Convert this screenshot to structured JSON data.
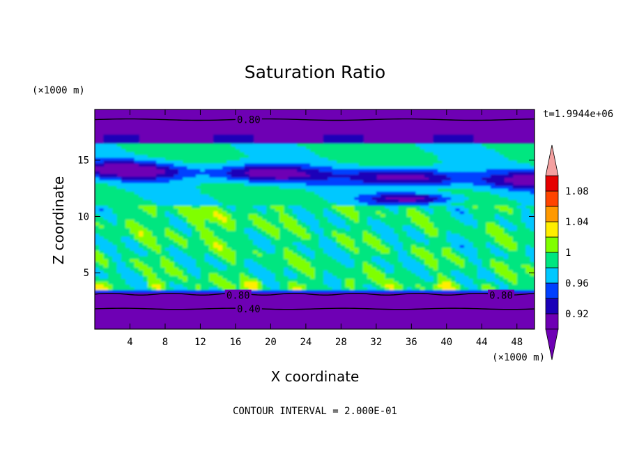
{
  "chart_data": {
    "type": "heatmap",
    "title": "Saturation Ratio",
    "xlabel": "X coordinate",
    "ylabel": "Z coordinate",
    "x_unit": "(×1000 m)",
    "y_unit": "(×1000 m)",
    "time_label": "t=1.9944e+06",
    "footer": "CONTOUR INTERVAL = 2.000E-01",
    "xlim": [
      0,
      50
    ],
    "ylim": [
      0,
      19.5
    ],
    "x_ticks": [
      4,
      8,
      12,
      16,
      20,
      24,
      28,
      32,
      36,
      40,
      44,
      48
    ],
    "y_ticks": [
      5,
      10,
      15
    ],
    "colorbar": {
      "levels": [
        0.9,
        0.92,
        0.94,
        0.96,
        0.98,
        1.0,
        1.02,
        1.04,
        1.06,
        1.08,
        1.1
      ],
      "tick_values": [
        0.92,
        0.96,
        1,
        1.04,
        1.08
      ],
      "tick_labels": [
        "0.92",
        "0.96",
        "1",
        "1.04",
        "1.08"
      ],
      "colors": [
        "#6e00b4",
        "#1a00b8",
        "#0040ff",
        "#00c8ff",
        "#00e680",
        "#80ff00",
        "#ffee00",
        "#ff9900",
        "#ff4400",
        "#e60000"
      ],
      "under_color": "#6e00b4",
      "over_color": "#f4a0a0"
    },
    "contour_labels": [
      {
        "text": "0.80",
        "x": 17.5,
        "z": 18.6
      },
      {
        "text": "0.80",
        "x": 16.3,
        "z": 3.0
      },
      {
        "text": "0.80",
        "x": 46.2,
        "z": 3.0
      },
      {
        "text": "0.40",
        "x": 17.5,
        "z": 1.8
      }
    ]
  }
}
